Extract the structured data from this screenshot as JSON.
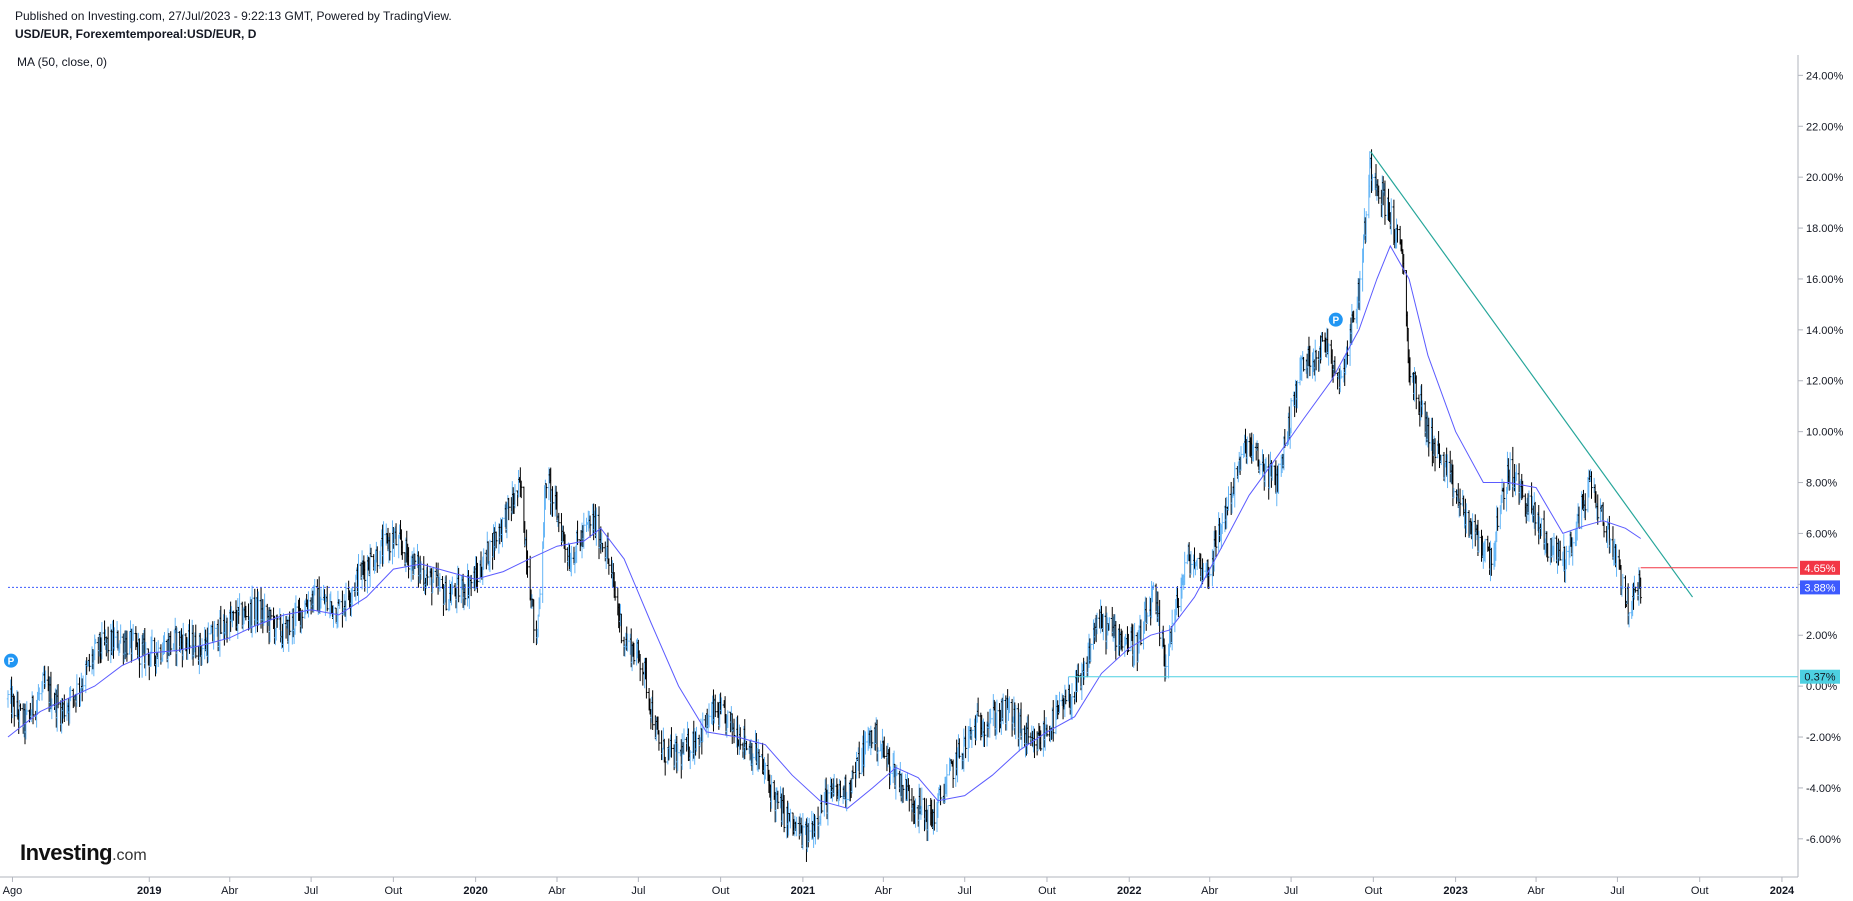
{
  "header": {
    "published": "Published on Investing.com, 27/Jul/2023 - 9:22:13 GMT, Powered by TradingView.",
    "symbol": "USD/EUR, Forexemtemporeal:USD/EUR, D",
    "indicator": "MA (50, close, 0)"
  },
  "logo": {
    "brand": "Investing",
    "suffix": ".com"
  },
  "markers": [
    "P",
    "P"
  ],
  "colors": {
    "ohlc": "#000000",
    "ohlc_up": "#64b5f6",
    "ma": "#5b5bff",
    "trendline": "#26a69a",
    "current_price_line": "#3d5afe",
    "resistance": "#f23645",
    "support": "#4dd0e1"
  },
  "chart_data": {
    "type": "line",
    "title": "USD/EUR, Forexemtemporeal:USD/EUR, D",
    "y_axis": {
      "unit": "%",
      "range": [
        -7.5,
        24.8
      ],
      "ticks": [
        "24.00%",
        "22.00%",
        "20.00%",
        "18.00%",
        "16.00%",
        "14.00%",
        "12.00%",
        "10.00%",
        "8.00%",
        "6.00%",
        "4.00%",
        "2.00%",
        "0.00%",
        "-2.00%",
        "-4.00%",
        "-6.00%"
      ],
      "tick_values": [
        24,
        22,
        20,
        18,
        16,
        14,
        12,
        10,
        8,
        6,
        4,
        2,
        0,
        -2,
        -4,
        -6
      ]
    },
    "x_axis": {
      "range": [
        "2018-07-27",
        "2024-01-10"
      ],
      "ticks": [
        {
          "label": "Ago",
          "date": "2018-08-01",
          "bold": false
        },
        {
          "label": "2019",
          "date": "2019-01-01",
          "bold": true
        },
        {
          "label": "Abr",
          "date": "2019-04-01",
          "bold": false
        },
        {
          "label": "Jul",
          "date": "2019-07-01",
          "bold": false
        },
        {
          "label": "Out",
          "date": "2019-10-01",
          "bold": false
        },
        {
          "label": "2020",
          "date": "2020-01-01",
          "bold": true
        },
        {
          "label": "Abr",
          "date": "2020-04-01",
          "bold": false
        },
        {
          "label": "Jul",
          "date": "2020-07-01",
          "bold": false
        },
        {
          "label": "Out",
          "date": "2020-10-01",
          "bold": false
        },
        {
          "label": "2021",
          "date": "2021-01-01",
          "bold": true
        },
        {
          "label": "Abr",
          "date": "2021-04-01",
          "bold": false
        },
        {
          "label": "Jul",
          "date": "2021-07-01",
          "bold": false
        },
        {
          "label": "Out",
          "date": "2021-10-01",
          "bold": false
        },
        {
          "label": "2022",
          "date": "2022-01-01",
          "bold": true
        },
        {
          "label": "Abr",
          "date": "2022-04-01",
          "bold": false
        },
        {
          "label": "Jul",
          "date": "2022-07-01",
          "bold": false
        },
        {
          "label": "Out",
          "date": "2022-10-01",
          "bold": false
        },
        {
          "label": "2023",
          "date": "2023-01-01",
          "bold": true
        },
        {
          "label": "Abr",
          "date": "2023-04-01",
          "bold": false
        },
        {
          "label": "Jul",
          "date": "2023-07-01",
          "bold": false
        },
        {
          "label": "Out",
          "date": "2023-10-01",
          "bold": false
        },
        {
          "label": "2024",
          "date": "2024-01-01",
          "bold": true
        }
      ]
    },
    "price_path": [
      [
        "2018-07-27",
        -0.5
      ],
      [
        "2018-08-15",
        -1.5
      ],
      [
        "2018-09-05",
        0.0
      ],
      [
        "2018-09-25",
        -1.0
      ],
      [
        "2018-10-15",
        0.0
      ],
      [
        "2018-11-05",
        1.5
      ],
      [
        "2018-12-01",
        1.8
      ],
      [
        "2019-01-01",
        1.2
      ],
      [
        "2019-02-01",
        1.8
      ],
      [
        "2019-03-01",
        1.5
      ],
      [
        "2019-04-01",
        2.5
      ],
      [
        "2019-05-01",
        3.0
      ],
      [
        "2019-06-01",
        2.0
      ],
      [
        "2019-07-01",
        3.5
      ],
      [
        "2019-08-01",
        3.0
      ],
      [
        "2019-09-01",
        4.8
      ],
      [
        "2019-10-01",
        5.8
      ],
      [
        "2019-11-01",
        4.5
      ],
      [
        "2019-12-01",
        3.5
      ],
      [
        "2020-01-01",
        4.2
      ],
      [
        "2020-02-01",
        6.5
      ],
      [
        "2020-02-20",
        7.8
      ],
      [
        "2020-03-09",
        1.5
      ],
      [
        "2020-03-20",
        8.2
      ],
      [
        "2020-04-15",
        5.0
      ],
      [
        "2020-05-10",
        6.5
      ],
      [
        "2020-05-25",
        5.5
      ],
      [
        "2020-06-15",
        1.8
      ],
      [
        "2020-07-05",
        1.0
      ],
      [
        "2020-07-25",
        -2.5
      ],
      [
        "2020-08-15",
        -2.8
      ],
      [
        "2020-09-05",
        -2.0
      ],
      [
        "2020-09-25",
        -1.0
      ],
      [
        "2020-10-20",
        -1.8
      ],
      [
        "2020-11-15",
        -3.0
      ],
      [
        "2020-12-01",
        -4.5
      ],
      [
        "2020-12-20",
        -5.5
      ],
      [
        "2021-01-05",
        -6.0
      ],
      [
        "2021-01-25",
        -4.5
      ],
      [
        "2021-02-20",
        -4.0
      ],
      [
        "2021-03-20",
        -1.8
      ],
      [
        "2021-04-15",
        -3.5
      ],
      [
        "2021-05-10",
        -4.8
      ],
      [
        "2021-05-25",
        -5.3
      ],
      [
        "2021-06-20",
        -3.0
      ],
      [
        "2021-07-15",
        -1.5
      ],
      [
        "2021-08-20",
        -1.0
      ],
      [
        "2021-09-15",
        -2.5
      ],
      [
        "2021-10-20",
        -0.8
      ],
      [
        "2021-11-10",
        0.2
      ],
      [
        "2021-11-25",
        2.5
      ],
      [
        "2021-12-20",
        2.0
      ],
      [
        "2022-01-10",
        1.5
      ],
      [
        "2022-01-28",
        3.5
      ],
      [
        "2022-02-10",
        1.0
      ],
      [
        "2022-03-07",
        5.0
      ],
      [
        "2022-03-30",
        4.5
      ],
      [
        "2022-04-20",
        7.0
      ],
      [
        "2022-05-12",
        9.5
      ],
      [
        "2022-06-01",
        8.5
      ],
      [
        "2022-06-15",
        8.0
      ],
      [
        "2022-07-12",
        12.5
      ],
      [
        "2022-08-10",
        13.5
      ],
      [
        "2022-08-25",
        12.0
      ],
      [
        "2022-09-15",
        15.5
      ],
      [
        "2022-09-28",
        20.5
      ],
      [
        "2022-10-20",
        18.5
      ],
      [
        "2022-11-04",
        16.5
      ],
      [
        "2022-11-10",
        12.5
      ],
      [
        "2022-12-01",
        10.0
      ],
      [
        "2022-12-20",
        8.5
      ],
      [
        "2023-01-20",
        6.0
      ],
      [
        "2023-02-10",
        5.0
      ],
      [
        "2023-03-01",
        8.5
      ],
      [
        "2023-03-25",
        7.0
      ],
      [
        "2023-04-15",
        5.5
      ],
      [
        "2023-05-05",
        5.0
      ],
      [
        "2023-05-31",
        8.0
      ],
      [
        "2023-06-15",
        6.5
      ],
      [
        "2023-07-01",
        5.0
      ],
      [
        "2023-07-14",
        3.0
      ],
      [
        "2023-07-27",
        4.0
      ]
    ],
    "moving_average_50": [
      [
        "2018-07-27",
        -2.0
      ],
      [
        "2018-09-01",
        -1.0
      ],
      [
        "2018-10-01",
        -0.5
      ],
      [
        "2018-11-01",
        0.0
      ],
      [
        "2018-12-01",
        0.8
      ],
      [
        "2019-01-01",
        1.3
      ],
      [
        "2019-02-01",
        1.4
      ],
      [
        "2019-03-01",
        1.6
      ],
      [
        "2019-04-01",
        1.9
      ],
      [
        "2019-05-01",
        2.4
      ],
      [
        "2019-06-01",
        2.8
      ],
      [
        "2019-07-01",
        3.0
      ],
      [
        "2019-08-01",
        2.8
      ],
      [
        "2019-09-01",
        3.5
      ],
      [
        "2019-10-01",
        4.6
      ],
      [
        "2019-11-01",
        4.8
      ],
      [
        "2019-12-01",
        4.5
      ],
      [
        "2020-01-01",
        4.2
      ],
      [
        "2020-02-01",
        4.5
      ],
      [
        "2020-03-01",
        5.0
      ],
      [
        "2020-04-01",
        5.5
      ],
      [
        "2020-05-01",
        5.7
      ],
      [
        "2020-05-20",
        6.2
      ],
      [
        "2020-06-15",
        5.0
      ],
      [
        "2020-07-15",
        2.5
      ],
      [
        "2020-08-15",
        0.0
      ],
      [
        "2020-09-15",
        -1.8
      ],
      [
        "2020-10-20",
        -2.0
      ],
      [
        "2020-11-20",
        -2.3
      ],
      [
        "2020-12-20",
        -3.5
      ],
      [
        "2021-01-20",
        -4.5
      ],
      [
        "2021-02-20",
        -4.8
      ],
      [
        "2021-03-20",
        -4.0
      ],
      [
        "2021-04-15",
        -3.2
      ],
      [
        "2021-05-10",
        -3.6
      ],
      [
        "2021-06-01",
        -4.5
      ],
      [
        "2021-07-01",
        -4.3
      ],
      [
        "2021-08-01",
        -3.5
      ],
      [
        "2021-09-01",
        -2.5
      ],
      [
        "2021-10-01",
        -1.8
      ],
      [
        "2021-11-01",
        -1.2
      ],
      [
        "2021-12-01",
        0.5
      ],
      [
        "2022-01-01",
        1.5
      ],
      [
        "2022-01-25",
        2.0
      ],
      [
        "2022-02-15",
        2.2
      ],
      [
        "2022-03-15",
        3.5
      ],
      [
        "2022-04-15",
        5.5
      ],
      [
        "2022-05-15",
        7.5
      ],
      [
        "2022-06-15",
        9.0
      ],
      [
        "2022-07-15",
        10.5
      ],
      [
        "2022-08-15",
        12.0
      ],
      [
        "2022-09-15",
        14.0
      ],
      [
        "2022-10-05",
        16.0
      ],
      [
        "2022-10-20",
        17.3
      ],
      [
        "2022-11-10",
        16.0
      ],
      [
        "2022-12-01",
        13.0
      ],
      [
        "2023-01-01",
        10.0
      ],
      [
        "2023-02-01",
        8.0
      ],
      [
        "2023-03-01",
        8.0
      ],
      [
        "2023-04-01",
        7.8
      ],
      [
        "2023-05-01",
        6.0
      ],
      [
        "2023-05-25",
        6.3
      ],
      [
        "2023-06-15",
        6.5
      ],
      [
        "2023-07-10",
        6.2
      ],
      [
        "2023-07-27",
        5.8
      ]
    ],
    "annotations": {
      "trendline": [
        [
          "2022-09-28",
          21.0
        ],
        [
          "2023-09-23",
          3.5
        ]
      ],
      "resistance_line": {
        "value": 4.65,
        "from": "2023-07-27",
        "label": "4.65%"
      },
      "current_price": {
        "value": 3.88,
        "label": "3.88%"
      },
      "support_line": {
        "value": 0.37,
        "from": "2021-10-25",
        "label": "0.37%"
      }
    }
  }
}
